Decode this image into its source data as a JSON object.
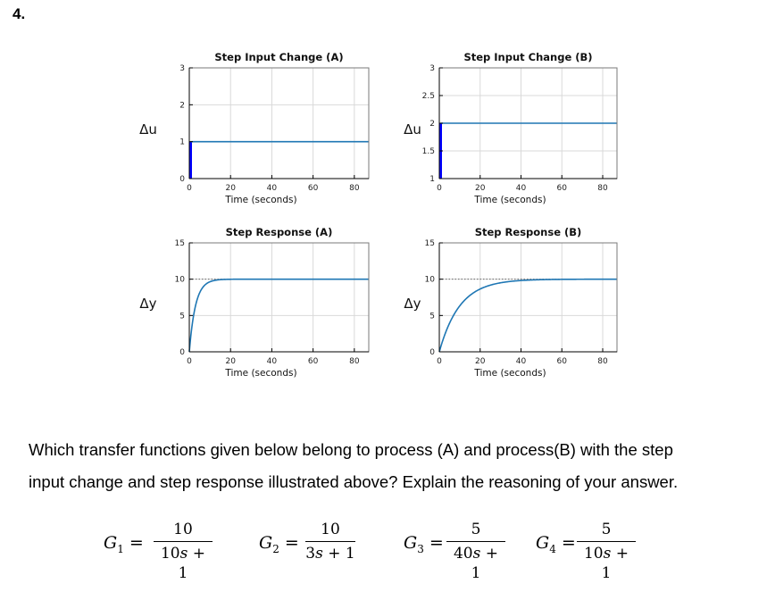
{
  "question_number": "4.",
  "chart_data": [
    {
      "type": "line",
      "title": "Step Input Change (A)",
      "xlabel": "Time (seconds)",
      "ylabel": "Δu",
      "xlim": [
        0,
        87
      ],
      "ylim": [
        0,
        3
      ],
      "xticks": [
        0,
        20,
        40,
        60,
        80
      ],
      "yticks": [
        0,
        1,
        2,
        3
      ],
      "grid": true,
      "series": [
        {
          "kind": "step",
          "t0": 0,
          "from": 0,
          "to": 1
        }
      ]
    },
    {
      "type": "line",
      "title": "Step Input Change (B)",
      "xlabel": "Time (seconds)",
      "ylabel": "Δu",
      "xlim": [
        0,
        87
      ],
      "ylim": [
        1,
        3
      ],
      "xticks": [
        0,
        20,
        40,
        60,
        80
      ],
      "yticks": [
        1,
        1.5,
        2,
        2.5,
        3
      ],
      "grid": true,
      "series": [
        {
          "kind": "step",
          "t0": 0,
          "from": 1,
          "to": 2
        }
      ]
    },
    {
      "type": "line",
      "title": "Step Response (A)",
      "xlabel": "Time (seconds)",
      "ylabel": "Δy",
      "xlim": [
        0,
        87
      ],
      "ylim": [
        0,
        15
      ],
      "xticks": [
        0,
        20,
        40,
        60,
        80
      ],
      "yticks": [
        0,
        5,
        10,
        15
      ],
      "grid": true,
      "reference_level": 10,
      "series": [
        {
          "kind": "first_order",
          "gain": 10,
          "tau": 3
        }
      ]
    },
    {
      "type": "line",
      "title": "Step Response (B)",
      "xlabel": "Time (seconds)",
      "ylabel": "Δy",
      "xlim": [
        0,
        87
      ],
      "ylim": [
        0,
        15
      ],
      "xticks": [
        0,
        20,
        40,
        60,
        80
      ],
      "yticks": [
        0,
        5,
        10,
        15
      ],
      "grid": true,
      "reference_level": 10,
      "series": [
        {
          "kind": "first_order",
          "gain": 10,
          "tau": 10
        }
      ]
    }
  ],
  "question": {
    "line1": "Which transfer functions given below belong to process (A) and process(B) with the step",
    "line2": "input change and step response illustrated above? Explain the reasoning of your answer."
  },
  "transfer_functions": [
    {
      "name": "G",
      "sub": "1",
      "numerator": "10",
      "den_coef": "10",
      "den_var": "s",
      "den_rest": " + 1"
    },
    {
      "name": "G",
      "sub": "2",
      "numerator": "10",
      "den_coef": "3",
      "den_var": "s",
      "den_rest": " + 1"
    },
    {
      "name": "G",
      "sub": "3",
      "numerator": "5",
      "den_coef": "40",
      "den_var": "s",
      "den_rest": " + 1"
    },
    {
      "name": "G",
      "sub": "4",
      "numerator": "5",
      "den_coef": "10",
      "den_var": "s",
      "den_rest": " + 1"
    }
  ],
  "colors": {
    "curve": "#1f77b4",
    "step_edge": "#0000ff",
    "grid": "#d9d9d9",
    "axes": "#000000"
  }
}
